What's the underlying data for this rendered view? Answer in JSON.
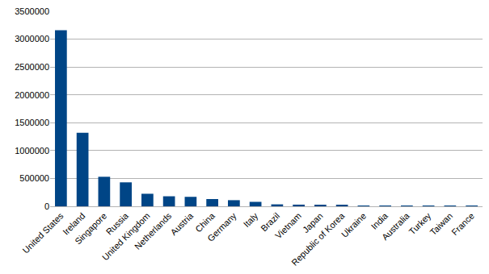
{
  "chart_data": {
    "type": "bar",
    "categories": [
      "United States",
      "Ireland",
      "Singapore",
      "Russia",
      "United Kingdom",
      "Netherlands",
      "Austria",
      "China",
      "Germany",
      "Italy",
      "Brazil",
      "Vietnam",
      "Japan",
      "Republic of Korea",
      "Ukraine",
      "India",
      "Australia",
      "Turkey",
      "Taiwan",
      "France"
    ],
    "values": [
      3160000,
      1320000,
      530000,
      430000,
      225000,
      180000,
      170000,
      130000,
      110000,
      80000,
      35000,
      30000,
      25000,
      18000,
      8000,
      6000,
      5000,
      4000,
      3000,
      2000
    ],
    "color": "#004586",
    "ylim": [
      0,
      3500000
    ],
    "yticks": [
      0,
      500000,
      1000000,
      1500000,
      2000000,
      2500000,
      3000000,
      3500000
    ],
    "grid": true
  }
}
